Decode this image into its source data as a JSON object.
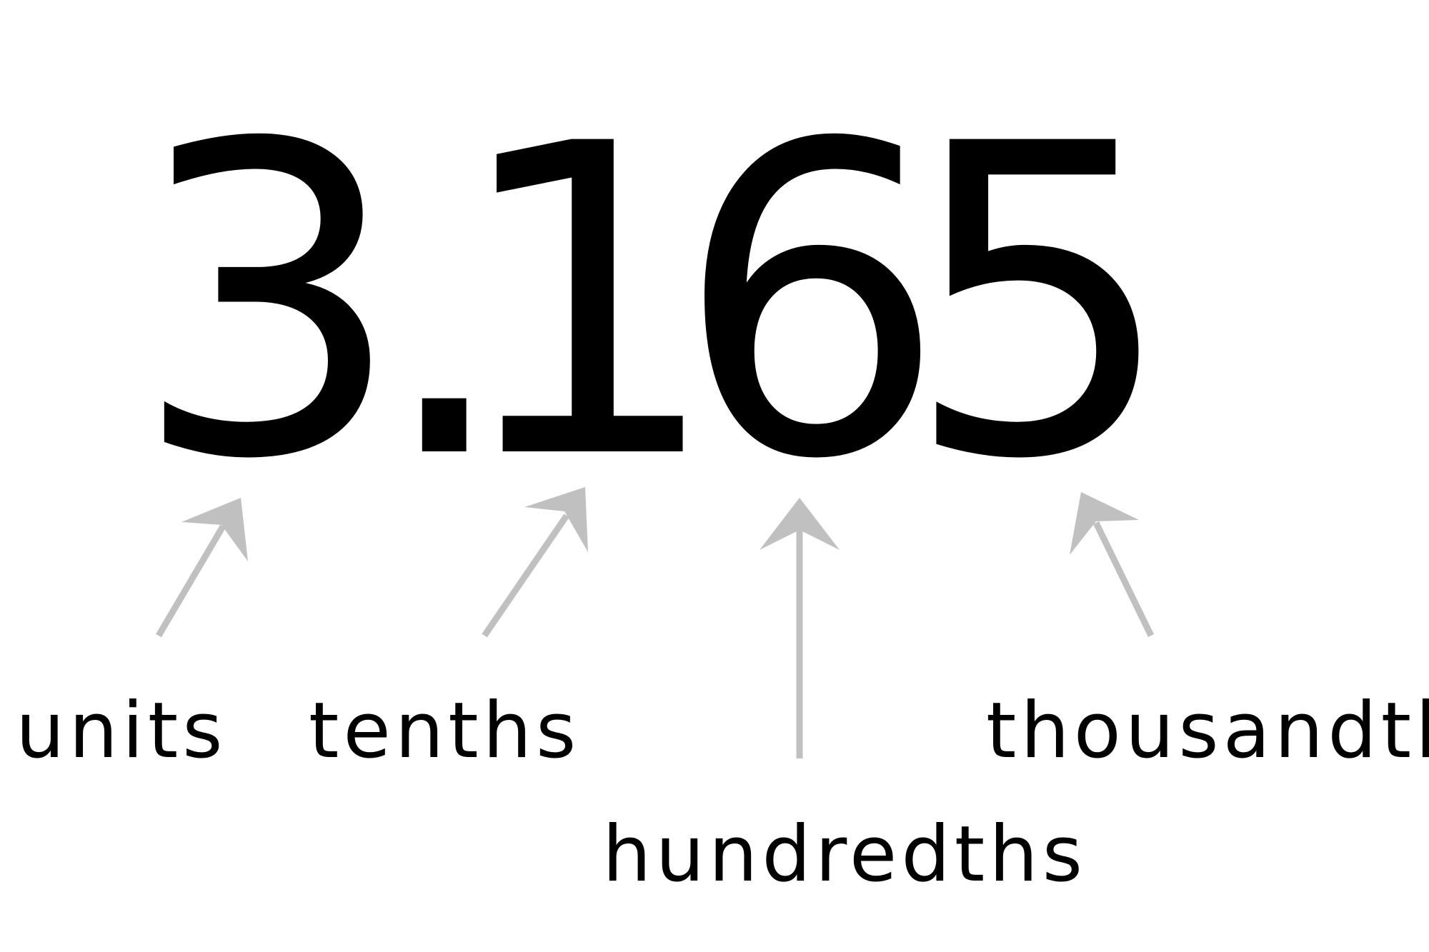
{
  "number": {
    "digits": [
      "3",
      ".",
      "1",
      "6",
      "5"
    ]
  },
  "labels": {
    "units": "units",
    "tenths": "tenths",
    "hundredths": "hundredths",
    "thousandths": "thousandths"
  },
  "colors": {
    "digits": "#000000",
    "labels": "#000000",
    "arrows": "#c0c0c0"
  }
}
